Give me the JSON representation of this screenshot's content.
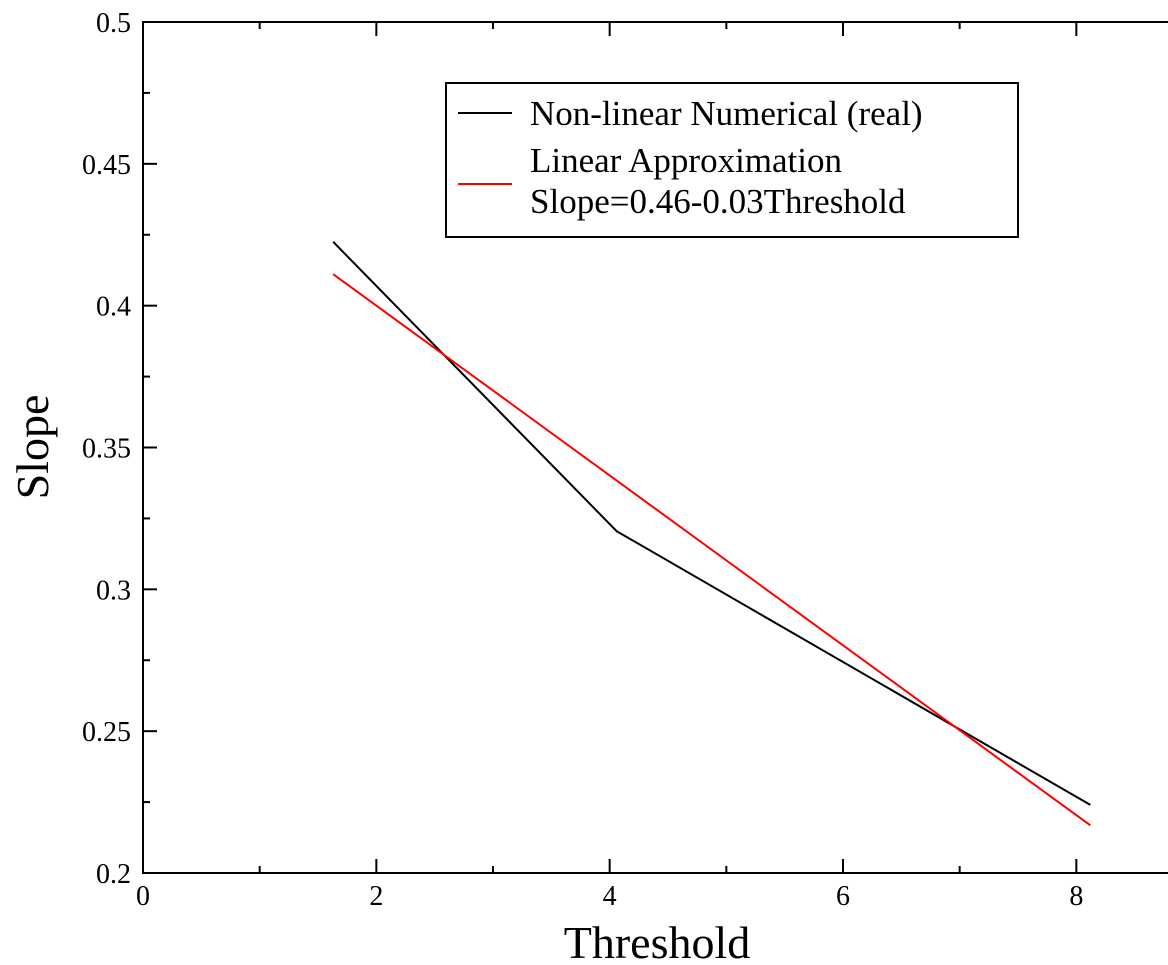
{
  "chart_data": {
    "type": "line",
    "title": "",
    "xlabel": "Threshold",
    "ylabel": "Slope",
    "xlim": [
      0,
      9
    ],
    "ylim": [
      0.2,
      0.5
    ],
    "xticks": [
      0,
      2,
      4,
      6,
      8
    ],
    "xtick_labels": [
      "0",
      "2",
      "4",
      "6",
      "8"
    ],
    "x_minor_ticks": [
      1,
      3,
      5,
      7
    ],
    "yticks": [
      0.2,
      0.25,
      0.3,
      0.35,
      0.4,
      0.45,
      0.5
    ],
    "ytick_labels": [
      "0.2",
      "0.25",
      "0.3",
      "0.35",
      "0.4",
      "0.45",
      "0.5"
    ],
    "y_minor_ticks": [
      0.225,
      0.275,
      0.325,
      0.375,
      0.425,
      0.475
    ],
    "grid": false,
    "legend_position": "top-right",
    "series": [
      {
        "name": "Non-linear Numerical (real)",
        "color": "#000000",
        "x": [
          1.63,
          4.06,
          8.12
        ],
        "y": [
          0.4225,
          0.3205,
          0.224
        ]
      },
      {
        "name": "Linear Approximation Slope=0.46-0.03Threshold",
        "legend_lines": [
          "Linear Approximation",
          "Slope=0.46-0.03Threshold"
        ],
        "color": "#ff0000",
        "x": [
          1.63,
          8.12
        ],
        "y": [
          0.4111,
          0.2168
        ]
      }
    ]
  }
}
